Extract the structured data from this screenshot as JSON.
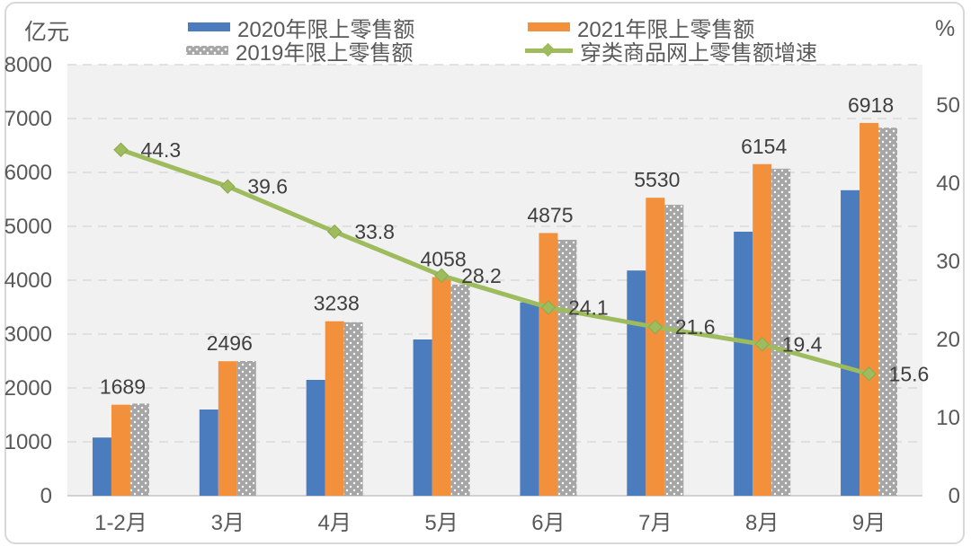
{
  "chart": {
    "left_axis_title": "亿元",
    "right_axis_title": "%"
  },
  "chart_data": {
    "type": "combo (grouped bar + line)",
    "title": "",
    "categories": [
      "1-2月",
      "3月",
      "4月",
      "5月",
      "6月",
      "7月",
      "8月",
      "9月"
    ],
    "series": [
      {
        "name": "2020年限上零售额",
        "type": "bar",
        "axis": "left",
        "color": "#4B7CBE",
        "values": [
          1080,
          1600,
          2150,
          2900,
          3590,
          4180,
          4900,
          5670
        ]
      },
      {
        "name": "2021年限上零售额",
        "type": "bar",
        "axis": "left",
        "color": "#F2903B",
        "data_labels": true,
        "values": [
          1689,
          2496,
          3238,
          4058,
          4875,
          5530,
          6154,
          6918
        ]
      },
      {
        "name": "2019年限上零售额",
        "type": "bar",
        "axis": "left",
        "color": "#A6A6A6",
        "pattern": "white-dots",
        "values": [
          1710,
          2500,
          3220,
          3920,
          4750,
          5400,
          6070,
          6830
        ]
      },
      {
        "name": "穿类商品网上零售额增速",
        "type": "line",
        "axis": "right",
        "color": "#9EBB5D",
        "marker": "diamond",
        "data_labels": true,
        "values": [
          44.3,
          39.6,
          33.8,
          28.2,
          24.1,
          21.6,
          19.4,
          15.6
        ]
      }
    ],
    "left_axis": {
      "title": "亿元",
      "min": 0,
      "max": 8000,
      "ticks": [
        0,
        1000,
        2000,
        3000,
        4000,
        5000,
        6000,
        7000,
        8000
      ]
    },
    "right_axis": {
      "title": "%",
      "min": 0,
      "top_value": 55.2,
      "ticks": [
        0,
        10,
        20,
        30,
        40,
        50
      ]
    },
    "grid": "dashed-horizontal",
    "legend_position": "top",
    "style": {
      "plot_bg": "#F1F1F1",
      "grid_color": "#DBDBDB",
      "baseline_color": "#C6C6C6",
      "tick_text_color": "#595959",
      "data_label_color": "#3F3F3F",
      "frame_border_color": "#D8D8D8"
    }
  }
}
